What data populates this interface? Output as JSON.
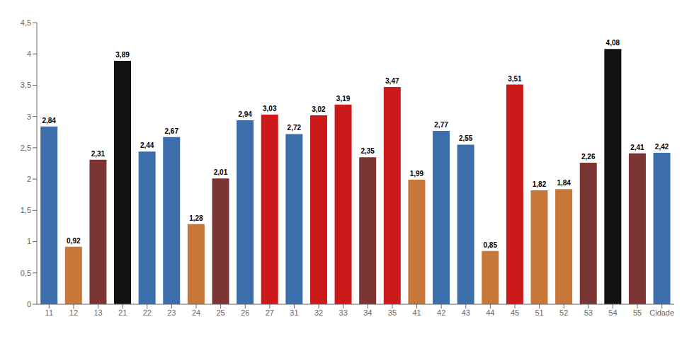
{
  "chart_data": {
    "type": "bar",
    "categories": [
      "11",
      "12",
      "13",
      "21",
      "22",
      "23",
      "24",
      "25",
      "26",
      "27",
      "31",
      "32",
      "33",
      "34",
      "35",
      "41",
      "42",
      "43",
      "44",
      "45",
      "51",
      "52",
      "53",
      "54",
      "55",
      "Cidade"
    ],
    "values": [
      2.84,
      0.92,
      2.31,
      3.89,
      2.44,
      2.67,
      1.28,
      2.01,
      2.94,
      3.03,
      2.72,
      3.02,
      3.19,
      2.35,
      3.47,
      1.99,
      2.77,
      2.55,
      0.85,
      3.51,
      1.82,
      1.84,
      2.26,
      4.08,
      2.41,
      2.42
    ],
    "value_labels": [
      "2,84",
      "0,92",
      "2,31",
      "3,89",
      "2,44",
      "2,67",
      "1,28",
      "2,01",
      "2,94",
      "3,03",
      "2,72",
      "3,02",
      "3,19",
      "2,35",
      "3,47",
      "1,99",
      "2,77",
      "2,55",
      "0,85",
      "3,51",
      "1,82",
      "1,84",
      "2,26",
      "4,08",
      "2,41",
      "2,42"
    ],
    "colors": [
      "#3B6EAA",
      "#C8773A",
      "#7B3535",
      "#111111",
      "#3B6EAA",
      "#3B6EAA",
      "#C8773A",
      "#7B3535",
      "#3B6EAA",
      "#CC1A1A",
      "#3B6EAA",
      "#CC1A1A",
      "#CC1A1A",
      "#7B3535",
      "#CC1A1A",
      "#C8773A",
      "#3B6EAA",
      "#3B6EAA",
      "#C8773A",
      "#CC1A1A",
      "#C8773A",
      "#C8773A",
      "#7B3535",
      "#111111",
      "#7B3535",
      "#3B6EAA"
    ],
    "ylim": [
      0,
      4.5
    ],
    "yticks": [
      0,
      {
        "value": 0.5,
        "label": "0,5"
      },
      1,
      {
        "value": 1.5,
        "label": "1,5"
      },
      2,
      {
        "value": 2.5,
        "label": "2,5"
      },
      3,
      {
        "value": 3.5,
        "label": "3,5"
      },
      4,
      {
        "value": 4.5,
        "label": "4,5"
      }
    ],
    "grid": false,
    "data_labels": true
  }
}
